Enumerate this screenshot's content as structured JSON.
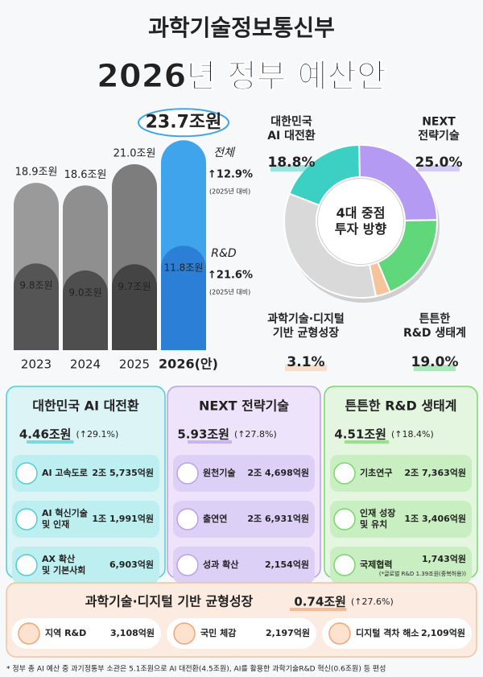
{
  "header": {
    "ministry": "과학기술정보통신부",
    "title": "2026년 정부 예산안"
  },
  "chart_data": [
    {
      "type": "bar",
      "categories": [
        "2023",
        "2024",
        "2025",
        "2026(안)"
      ],
      "series": [
        {
          "name": "전체",
          "colors": [
            "#9a9a9a",
            "#8f8f8f",
            "#7d7d7d",
            "#3fa4ec"
          ],
          "values": [
            18.9,
            18.6,
            21.0,
            23.7
          ],
          "value_labels": [
            "18.9조원",
            "18.6조원",
            "21.0조원",
            "23.7조원"
          ]
        },
        {
          "name": "R&D",
          "colors": [
            "#555555",
            "#4e4e4e",
            "#444444",
            "#2b7fd6"
          ],
          "values": [
            9.8,
            9.0,
            9.7,
            11.8
          ],
          "value_labels": [
            "9.8조원",
            "9.0조원",
            "9.7조원",
            "11.8조원"
          ]
        }
      ],
      "annotations": [
        {
          "change": "↑12.9%",
          "note": "(2025년 대비)"
        },
        {
          "change": "↑21.6%",
          "note": "(2025년 대비)"
        }
      ]
    },
    {
      "type": "donut",
      "center_label": "4대 중점\n투자 방향",
      "categories": [
        "대한민국\nAI 대전환",
        "NEXT\n전략기술",
        "튼튼한\nR&D 생태계",
        "과학기술·디지털\n기반 균형성장",
        null
      ],
      "values": [
        18.8,
        25.0,
        19.0,
        3.1,
        34.1
      ],
      "value_labels": [
        "18.8%",
        "25.0%",
        "19.0%",
        "3.1%",
        null
      ],
      "colors": [
        "#3ccfc4",
        "#b49af2",
        "#5fd77a",
        "#f6c39a",
        "#d9d9d9"
      ]
    }
  ],
  "panels": [
    {
      "title": "대한민국 AI 대전환",
      "amount": "4.46조원",
      "change": "(↑29.1%)",
      "items": [
        {
          "name": "AI 고속도로",
          "amount": "2조 5,735억원"
        },
        {
          "name": "AI 혁신기술\n및 인재",
          "amount": "1조 1,991억원"
        },
        {
          "name": "AX 확산\n및 기본사회",
          "amount": "6,903억원"
        }
      ]
    },
    {
      "title": "NEXT 전략기술",
      "amount": "5.93조원",
      "change": "(↑27.8%)",
      "items": [
        {
          "name": "원천기술",
          "amount": "2조 4,698억원"
        },
        {
          "name": "출연연",
          "amount": "2조 6,931억원"
        },
        {
          "name": "성과 확산",
          "amount": "2,154억원"
        }
      ]
    },
    {
      "title": "튼튼한 R&D 생태계",
      "amount": "4.51조원",
      "change": "(↑18.4%)",
      "items": [
        {
          "name": "기초연구",
          "amount": "2조 7,363억원"
        },
        {
          "name": "인재 성장\n및 유치",
          "amount": "1조 3,406억원"
        },
        {
          "name": "국제협력",
          "amount": "1,743억원",
          "note": "(*글로벌 R&D 1.39조원(중복허용))"
        }
      ]
    }
  ],
  "balanced": {
    "title": "과학기술·디지털 기반 균형성장",
    "amount": "0.74조원",
    "change": "(↑27.6%)",
    "items": [
      {
        "name": "지역 R&D",
        "amount": "3,108억원"
      },
      {
        "name": "국민 체감",
        "amount": "2,197억원"
      },
      {
        "name": "디지털 격차 해소",
        "amount": "2,109억원"
      }
    ]
  },
  "footnote": "* 정부 총 AI 예산 중 과기정통부 소관은 5.1조원으로 AI 대전환(4.5조원), AI를 활용한 과학기술R&D 혁신(0.6조원) 등 편성"
}
